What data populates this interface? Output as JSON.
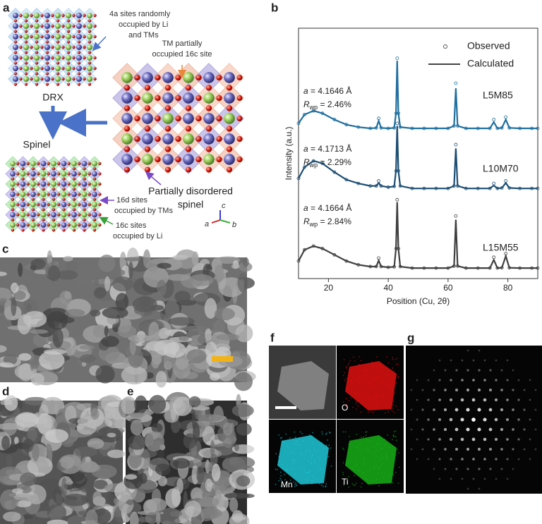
{
  "panel_labels": [
    "a",
    "b",
    "c",
    "d",
    "e",
    "f",
    "g"
  ],
  "panel_a": {
    "drx_note": [
      "4a sites randomly",
      "occupied by Li",
      "and TMs"
    ],
    "tm_note": [
      "TM partially",
      "occupied 16c site"
    ],
    "drx": "DRX",
    "spinel": "Spinel",
    "note_16d": [
      "16d sites",
      "occupied by TMs"
    ],
    "note_16c": [
      "16c sites",
      "occupied by Li"
    ],
    "partial": [
      "Partially disordered",
      "spinel"
    ],
    "axes": [
      "c",
      "a",
      "b"
    ]
  },
  "chart_data": {
    "type": "line",
    "y_label": "Intensity (a.u.)",
    "x_label": "Position (Cu, 2θ)",
    "xlim": [
      10,
      90
    ],
    "xticks": [
      20,
      40,
      60,
      80
    ],
    "ylim": [
      0,
      10
    ],
    "legend": [
      {
        "name": "Observed"
      },
      {
        "name": "Calculated"
      }
    ],
    "x": [
      10,
      12,
      15,
      18,
      22,
      26,
      30,
      34,
      36,
      36.8,
      37.6,
      40,
      42,
      42.6,
      43,
      43.4,
      44,
      48,
      52,
      56,
      60,
      62,
      62.6,
      63.2,
      66,
      70,
      74,
      75.3,
      76.5,
      78,
      79.3,
      80.5,
      84,
      88,
      90
    ],
    "traces": [
      {
        "label": "L5M85",
        "color": "#1f6fa0",
        "a_symbol": "a",
        "a_text": " = 4.1646 Å",
        "r_symbol": "R",
        "r_sub": "wp",
        "r_text": " = 2.46%",
        "calculated": [
          6.2,
          6.55,
          6.7,
          6.6,
          6.35,
          6.15,
          6.05,
          6.0,
          6.02,
          6.3,
          6.02,
          6.0,
          6.02,
          6.6,
          8.7,
          6.6,
          6.05,
          6.0,
          6.0,
          6.0,
          6.0,
          6.1,
          7.6,
          6.1,
          6.0,
          6.0,
          6.0,
          6.25,
          6.0,
          6.02,
          6.35,
          6.02,
          6.0,
          6.0,
          6.0
        ],
        "observed": [
          6.2,
          6.55,
          6.7,
          6.6,
          6.35,
          6.15,
          6.05,
          6.0,
          6.02,
          6.4,
          6.02,
          6.0,
          6.02,
          6.6,
          8.8,
          6.6,
          6.05,
          6.0,
          6.0,
          6.0,
          6.0,
          6.1,
          7.8,
          6.1,
          6.0,
          6.0,
          6.0,
          6.35,
          6.0,
          6.02,
          6.45,
          6.02,
          6.0,
          6.0,
          6.0
        ]
      },
      {
        "label": "L10M70",
        "color": "#1d4e74",
        "a_symbol": "a",
        "a_text": " = 4.1713 Å",
        "r_symbol": "R",
        "r_sub": "wp",
        "r_text": " = 2.29%",
        "calculated": [
          4.0,
          4.45,
          4.7,
          4.6,
          4.25,
          3.95,
          3.8,
          3.7,
          3.7,
          3.82,
          3.7,
          3.65,
          3.68,
          4.3,
          6.1,
          4.3,
          3.7,
          3.6,
          3.6,
          3.6,
          3.6,
          3.7,
          5.2,
          3.7,
          3.6,
          3.6,
          3.6,
          3.72,
          3.6,
          3.62,
          3.82,
          3.62,
          3.6,
          3.6,
          3.6
        ],
        "observed": [
          4.0,
          4.45,
          4.7,
          4.6,
          4.25,
          3.95,
          3.8,
          3.7,
          3.7,
          3.9,
          3.7,
          3.65,
          3.68,
          4.3,
          6.2,
          4.3,
          3.7,
          3.6,
          3.6,
          3.6,
          3.6,
          3.7,
          5.35,
          3.7,
          3.6,
          3.6,
          3.6,
          3.8,
          3.6,
          3.62,
          3.9,
          3.62,
          3.6,
          3.6,
          3.6
        ]
      },
      {
        "label": "L15M55",
        "color": "#404040",
        "a_symbol": "a",
        "a_text": " = 4.1664 Å",
        "r_symbol": "R",
        "r_sub": "wp",
        "r_text": " = 2.84%",
        "calculated": [
          0.7,
          1.15,
          1.3,
          1.2,
          0.95,
          0.7,
          0.55,
          0.48,
          0.48,
          0.72,
          0.48,
          0.45,
          0.47,
          1.2,
          3.05,
          1.2,
          0.48,
          0.42,
          0.42,
          0.42,
          0.42,
          0.5,
          2.35,
          0.5,
          0.42,
          0.42,
          0.42,
          0.75,
          0.42,
          0.43,
          0.9,
          0.43,
          0.42,
          0.42,
          0.42
        ],
        "observed": [
          0.7,
          1.15,
          1.3,
          1.2,
          0.95,
          0.7,
          0.55,
          0.48,
          0.48,
          0.82,
          0.48,
          0.45,
          0.47,
          1.2,
          3.15,
          1.2,
          0.48,
          0.42,
          0.42,
          0.42,
          0.42,
          0.5,
          2.5,
          0.5,
          0.42,
          0.42,
          0.42,
          0.85,
          0.42,
          0.43,
          1.0,
          0.43,
          0.42,
          0.42,
          0.42
        ]
      }
    ]
  },
  "panel_f": {
    "maps": [
      "O",
      "Mn",
      "Ti"
    ]
  }
}
